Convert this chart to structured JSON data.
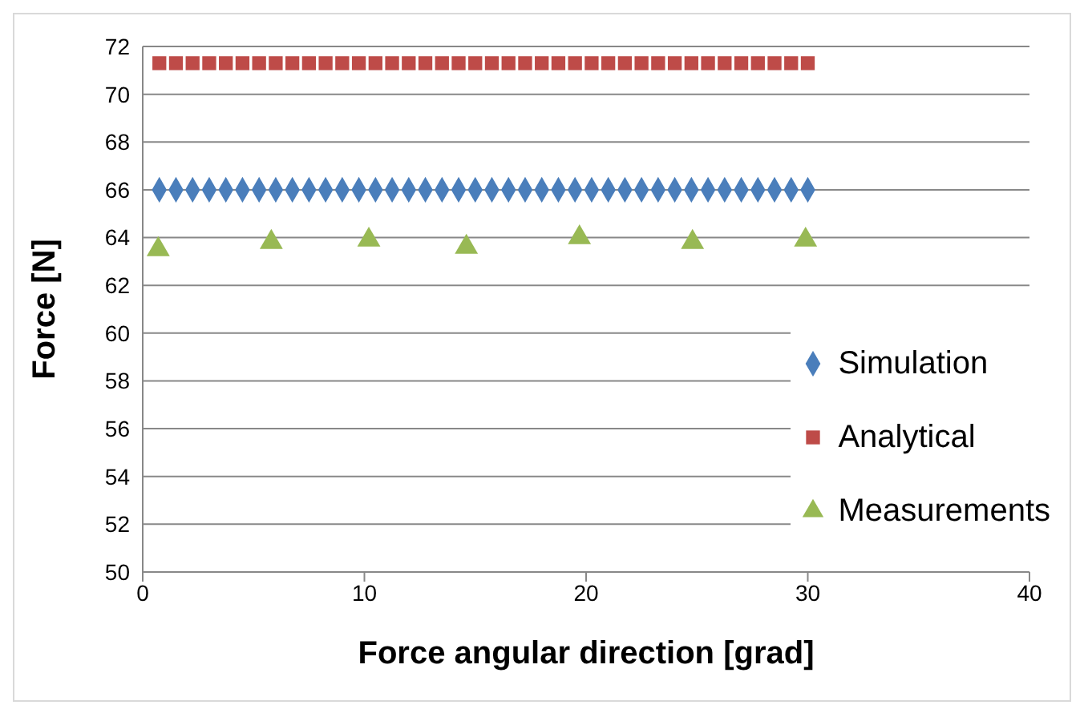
{
  "chart_data": {
    "type": "scatter",
    "xlabel": "Force angular direction [grad]",
    "ylabel": "Force [N]",
    "xlim": [
      0,
      40
    ],
    "xticks": [
      0,
      10,
      20,
      30,
      40
    ],
    "ylim": [
      50,
      72
    ],
    "yticks": [
      50,
      52,
      54,
      56,
      58,
      60,
      62,
      64,
      66,
      68,
      70,
      72
    ],
    "grid": "y",
    "legend": "right",
    "series": [
      {
        "name": "Simulation",
        "marker": "diamond",
        "color": "#4a7ebb",
        "x": [
          0.75,
          1.5,
          2.25,
          3,
          3.75,
          4.5,
          5.25,
          6,
          6.75,
          7.5,
          8.25,
          9,
          9.75,
          10.5,
          11.25,
          12,
          12.75,
          13.5,
          14.25,
          15,
          15.75,
          16.5,
          17.25,
          18,
          18.75,
          19.5,
          20.25,
          21,
          21.75,
          22.5,
          23.25,
          24,
          24.75,
          25.5,
          26.25,
          27,
          27.75,
          28.5,
          29.25,
          30
        ],
        "values": [
          66,
          66,
          66,
          66,
          66,
          66,
          66,
          66,
          66,
          66,
          66,
          66,
          66,
          66,
          66,
          66,
          66,
          66,
          66,
          66,
          66,
          66,
          66,
          66,
          66,
          66,
          66,
          66,
          66,
          66,
          66,
          66,
          66,
          66,
          66,
          66,
          66,
          66,
          66,
          66
        ]
      },
      {
        "name": "Analytical",
        "marker": "square",
        "color": "#be4b48",
        "x": [
          0.75,
          1.5,
          2.25,
          3,
          3.75,
          4.5,
          5.25,
          6,
          6.75,
          7.5,
          8.25,
          9,
          9.75,
          10.5,
          11.25,
          12,
          12.75,
          13.5,
          14.25,
          15,
          15.75,
          16.5,
          17.25,
          18,
          18.75,
          19.5,
          20.25,
          21,
          21.75,
          22.5,
          23.25,
          24,
          24.75,
          25.5,
          26.25,
          27,
          27.75,
          28.5,
          29.25,
          30
        ],
        "values": [
          71.3,
          71.3,
          71.3,
          71.3,
          71.3,
          71.3,
          71.3,
          71.3,
          71.3,
          71.3,
          71.3,
          71.3,
          71.3,
          71.3,
          71.3,
          71.3,
          71.3,
          71.3,
          71.3,
          71.3,
          71.3,
          71.3,
          71.3,
          71.3,
          71.3,
          71.3,
          71.3,
          71.3,
          71.3,
          71.3,
          71.3,
          71.3,
          71.3,
          71.3,
          71.3,
          71.3,
          71.3,
          71.3,
          71.3,
          71.3
        ]
      },
      {
        "name": "Measurements",
        "marker": "triangle",
        "color": "#98b954",
        "x": [
          0.7,
          5.8,
          10.2,
          14.6,
          19.7,
          24.8,
          29.9
        ],
        "values": [
          63.5,
          63.8,
          63.9,
          63.6,
          64,
          63.8,
          63.9
        ]
      }
    ]
  }
}
